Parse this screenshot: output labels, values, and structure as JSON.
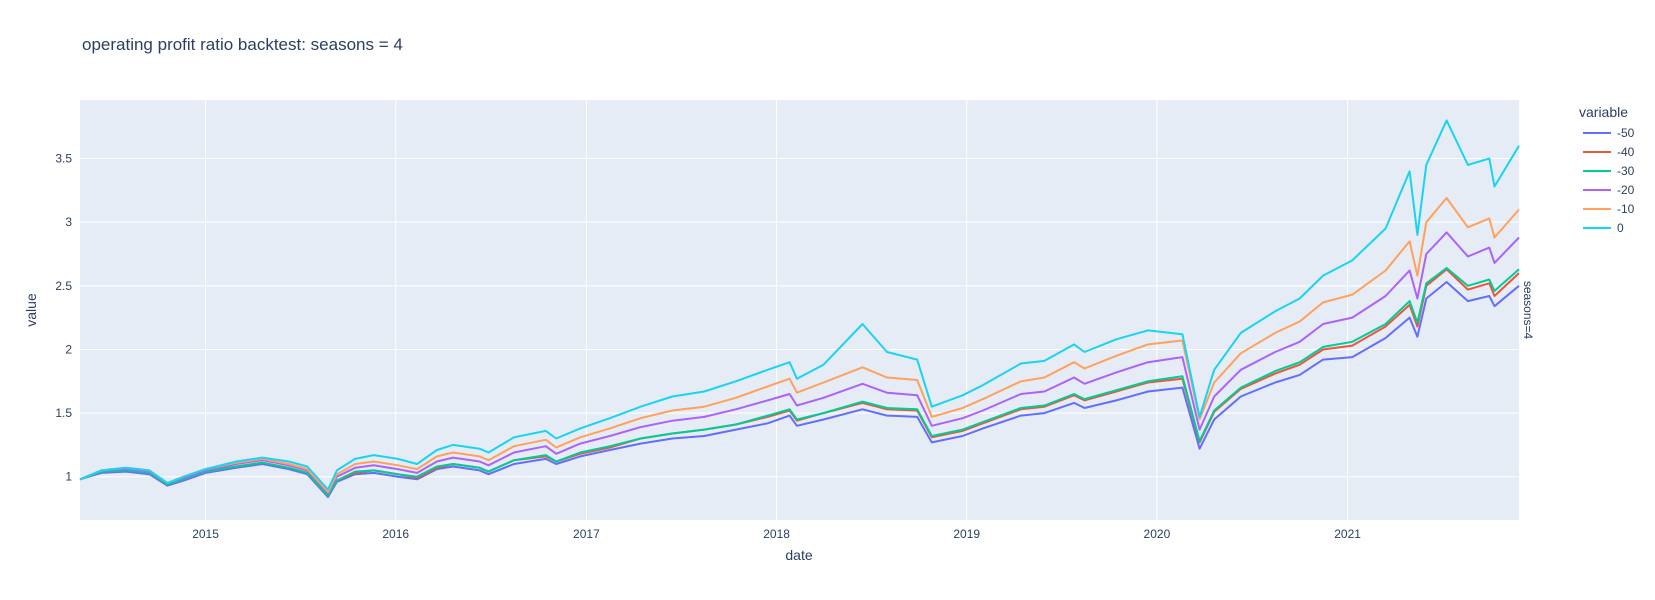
{
  "chart_data": {
    "type": "line",
    "title": "operating profit ratio backtest: seasons = 4",
    "xlabel": "date",
    "ylabel": "value",
    "facet_label": "seasons=4",
    "legend_title": "variable",
    "legend_position": "right",
    "grid": true,
    "xlim": [
      "2014-05-05",
      "2021-11-26"
    ],
    "ylim": [
      0.66,
      3.96
    ],
    "x_ticks": [
      "2015",
      "2016",
      "2017",
      "2018",
      "2019",
      "2020",
      "2021"
    ],
    "y_ticks": [
      "1",
      "1.5",
      "2",
      "2.5",
      "3",
      "3.5"
    ],
    "x": [
      "2014-05-05",
      "2014-06-15",
      "2014-08-01",
      "2014-09-15",
      "2014-10-20",
      "2014-11-20",
      "2015-01-01",
      "2015-03-01",
      "2015-04-20",
      "2015-06-10",
      "2015-07-15",
      "2015-08-24",
      "2015-09-10",
      "2015-10-15",
      "2015-11-20",
      "2016-01-05",
      "2016-02-11",
      "2016-03-20",
      "2016-04-20",
      "2016-06-10",
      "2016-06-27",
      "2016-08-15",
      "2016-10-15",
      "2016-11-04",
      "2016-12-20",
      "2017-02-15",
      "2017-04-15",
      "2017-06-15",
      "2017-08-15",
      "2017-10-15",
      "2017-12-15",
      "2018-01-26",
      "2018-02-09",
      "2018-04-01",
      "2018-06-15",
      "2018-08-01",
      "2018-09-28",
      "2018-10-26",
      "2018-12-24",
      "2019-02-01",
      "2019-04-15",
      "2019-05-30",
      "2019-07-26",
      "2019-08-15",
      "2019-10-15",
      "2019-12-15",
      "2020-02-19",
      "2020-03-23",
      "2020-04-20",
      "2020-06-10",
      "2020-08-15",
      "2020-10-01",
      "2020-11-15",
      "2021-01-10",
      "2021-03-15",
      "2021-04-30",
      "2021-05-15",
      "2021-06-01",
      "2021-07-10",
      "2021-08-20",
      "2021-09-30",
      "2021-10-10",
      "2021-11-26"
    ],
    "series": [
      {
        "name": "-50",
        "color": "#636efa",
        "values": [
          0.98,
          1.03,
          1.04,
          1.02,
          0.93,
          0.97,
          1.03,
          1.07,
          1.1,
          1.06,
          1.02,
          0.84,
          0.96,
          1.02,
          1.03,
          1.0,
          0.98,
          1.06,
          1.08,
          1.05,
          1.02,
          1.1,
          1.14,
          1.1,
          1.16,
          1.21,
          1.26,
          1.3,
          1.32,
          1.37,
          1.42,
          1.48,
          1.4,
          1.45,
          1.53,
          1.48,
          1.47,
          1.27,
          1.32,
          1.38,
          1.48,
          1.5,
          1.58,
          1.54,
          1.6,
          1.67,
          1.7,
          1.22,
          1.45,
          1.63,
          1.74,
          1.8,
          1.92,
          1.94,
          2.09,
          2.25,
          2.1,
          2.4,
          2.53,
          2.38,
          2.42,
          2.34,
          2.5
        ]
      },
      {
        "name": "-40",
        "color": "#ef553b",
        "values": [
          0.98,
          1.04,
          1.05,
          1.03,
          0.94,
          0.98,
          1.04,
          1.08,
          1.11,
          1.07,
          1.03,
          0.85,
          0.97,
          1.03,
          1.05,
          1.02,
          0.99,
          1.07,
          1.1,
          1.07,
          1.04,
          1.13,
          1.16,
          1.12,
          1.18,
          1.23,
          1.3,
          1.34,
          1.37,
          1.41,
          1.47,
          1.52,
          1.44,
          1.5,
          1.58,
          1.53,
          1.52,
          1.31,
          1.36,
          1.42,
          1.53,
          1.55,
          1.64,
          1.6,
          1.67,
          1.74,
          1.77,
          1.27,
          1.51,
          1.69,
          1.81,
          1.88,
          2.0,
          2.03,
          2.18,
          2.35,
          2.18,
          2.5,
          2.63,
          2.47,
          2.52,
          2.42,
          2.6
        ]
      },
      {
        "name": "-30",
        "color": "#00cc96",
        "values": [
          0.98,
          1.04,
          1.05,
          1.03,
          0.94,
          0.98,
          1.04,
          1.08,
          1.11,
          1.07,
          1.03,
          0.85,
          0.97,
          1.04,
          1.05,
          1.02,
          1.0,
          1.08,
          1.1,
          1.07,
          1.04,
          1.13,
          1.17,
          1.12,
          1.19,
          1.24,
          1.3,
          1.34,
          1.37,
          1.41,
          1.48,
          1.53,
          1.45,
          1.5,
          1.59,
          1.54,
          1.53,
          1.32,
          1.37,
          1.43,
          1.54,
          1.56,
          1.65,
          1.61,
          1.68,
          1.75,
          1.79,
          1.28,
          1.52,
          1.7,
          1.83,
          1.9,
          2.02,
          2.06,
          2.2,
          2.38,
          2.21,
          2.52,
          2.64,
          2.5,
          2.55,
          2.46,
          2.63
        ]
      },
      {
        "name": "-20",
        "color": "#ab63fa",
        "values": [
          0.98,
          1.05,
          1.06,
          1.04,
          0.95,
          0.99,
          1.05,
          1.1,
          1.13,
          1.09,
          1.05,
          0.87,
          1.0,
          1.07,
          1.09,
          1.06,
          1.03,
          1.12,
          1.15,
          1.12,
          1.09,
          1.19,
          1.24,
          1.18,
          1.26,
          1.32,
          1.39,
          1.44,
          1.47,
          1.53,
          1.6,
          1.65,
          1.56,
          1.62,
          1.73,
          1.66,
          1.64,
          1.4,
          1.46,
          1.52,
          1.65,
          1.67,
          1.78,
          1.73,
          1.82,
          1.9,
          1.94,
          1.37,
          1.63,
          1.84,
          1.98,
          2.06,
          2.2,
          2.25,
          2.42,
          2.62,
          2.4,
          2.75,
          2.92,
          2.73,
          2.8,
          2.68,
          2.88
        ]
      },
      {
        "name": "-10",
        "color": "#ffa15a",
        "values": [
          0.98,
          1.05,
          1.07,
          1.05,
          0.95,
          1.0,
          1.06,
          1.11,
          1.14,
          1.1,
          1.06,
          0.88,
          1.02,
          1.1,
          1.12,
          1.09,
          1.06,
          1.16,
          1.19,
          1.16,
          1.13,
          1.24,
          1.29,
          1.23,
          1.31,
          1.38,
          1.46,
          1.52,
          1.55,
          1.62,
          1.71,
          1.77,
          1.66,
          1.74,
          1.86,
          1.78,
          1.76,
          1.47,
          1.54,
          1.61,
          1.75,
          1.78,
          1.9,
          1.85,
          1.95,
          2.04,
          2.07,
          1.45,
          1.74,
          1.97,
          2.13,
          2.22,
          2.37,
          2.43,
          2.62,
          2.85,
          2.58,
          3.0,
          3.19,
          2.96,
          3.03,
          2.88,
          3.1
        ]
      },
      {
        "name": "0",
        "color": "#19d3f3",
        "values": [
          0.98,
          1.05,
          1.07,
          1.05,
          0.95,
          1.0,
          1.06,
          1.12,
          1.15,
          1.12,
          1.08,
          0.9,
          1.05,
          1.14,
          1.17,
          1.14,
          1.1,
          1.21,
          1.25,
          1.22,
          1.19,
          1.31,
          1.36,
          1.3,
          1.38,
          1.46,
          1.55,
          1.63,
          1.67,
          1.75,
          1.84,
          1.9,
          1.77,
          1.88,
          2.2,
          1.98,
          1.92,
          1.55,
          1.64,
          1.72,
          1.89,
          1.91,
          2.04,
          1.98,
          2.08,
          2.15,
          2.12,
          1.47,
          1.84,
          2.13,
          2.3,
          2.4,
          2.58,
          2.7,
          2.95,
          3.4,
          2.9,
          3.45,
          3.8,
          3.45,
          3.5,
          3.28,
          3.6
        ]
      }
    ]
  }
}
